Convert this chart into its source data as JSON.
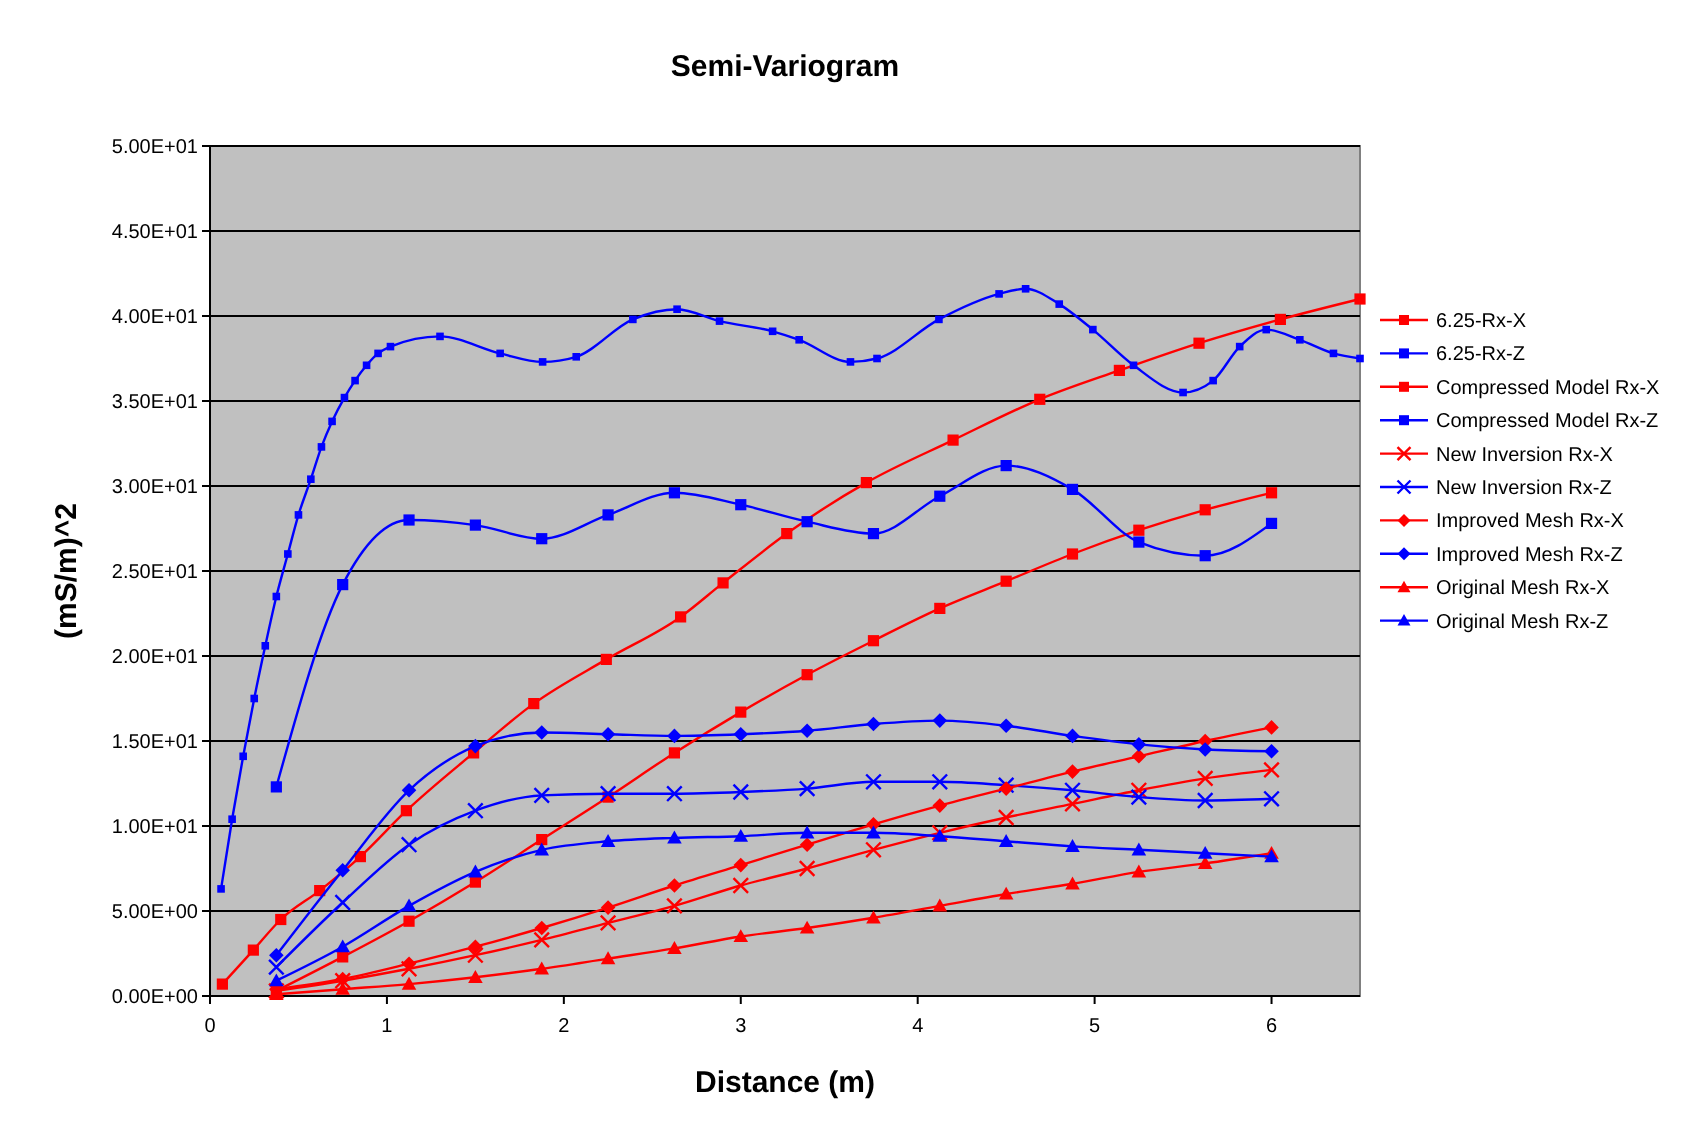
{
  "chart_data": {
    "type": "line",
    "title": "Semi-Variogram",
    "xlabel": "Distance (m)",
    "ylabel": "(mS/m)^2",
    "xlim": [
      0,
      6.5
    ],
    "xticks": [
      0,
      1,
      2,
      3,
      4,
      5,
      6
    ],
    "ylim": [
      0,
      50
    ],
    "yticks": [
      {
        "value": 0,
        "label": "0.00E+00"
      },
      {
        "value": 5,
        "label": "5.00E+00"
      },
      {
        "value": 10,
        "label": "1.00E+01"
      },
      {
        "value": 15,
        "label": "1.50E+01"
      },
      {
        "value": 20,
        "label": "2.00E+01"
      },
      {
        "value": 25,
        "label": "2.50E+01"
      },
      {
        "value": 30,
        "label": "3.00E+01"
      },
      {
        "value": 35,
        "label": "3.50E+01"
      },
      {
        "value": 40,
        "label": "4.00E+01"
      },
      {
        "value": 45,
        "label": "4.50E+01"
      },
      {
        "value": 50,
        "label": "5.00E+01"
      }
    ],
    "grid": "y",
    "legend": "right",
    "line_style": "solid",
    "x": [
      0.375,
      0.75,
      1.125,
      1.5,
      1.875,
      2.25,
      2.625,
      3.0,
      3.375,
      3.75,
      4.125,
      4.5,
      4.875,
      5.25,
      5.625,
      6.0
    ],
    "series": [
      {
        "name": "6.25-Rx-X",
        "color": "#ff0000",
        "marker": "square",
        "x": [
          0.07,
          0.245,
          0.4,
          0.62,
          0.85,
          1.11,
          1.49,
          1.83,
          2.24,
          2.66,
          2.9,
          3.26,
          3.71,
          4.2,
          4.69,
          5.14,
          5.59,
          6.05,
          6.5
        ],
        "values": [
          0.7,
          2.7,
          4.5,
          6.2,
          8.2,
          10.9,
          14.3,
          17.2,
          19.8,
          22.3,
          24.3,
          27.2,
          30.2,
          32.7,
          35.1,
          36.8,
          38.4,
          39.8,
          41.0
        ]
      },
      {
        "name": "6.25-Rx-Z",
        "color": "#0000ff",
        "marker": "square",
        "x": [
          0.0625,
          0.125,
          0.1875,
          0.25,
          0.3125,
          0.375,
          0.44,
          0.5,
          0.57,
          0.63,
          0.69,
          0.76,
          0.82,
          0.885,
          0.95,
          1.02,
          1.3,
          1.64,
          1.88,
          2.07,
          2.39,
          2.64,
          2.88,
          3.18,
          3.33,
          3.62,
          3.77,
          4.12,
          4.46,
          4.61,
          4.8,
          4.99,
          5.22,
          5.5,
          5.67,
          5.82,
          5.97,
          6.16,
          6.35,
          6.5
        ],
        "values": [
          6.3,
          10.4,
          14.1,
          17.5,
          20.6,
          23.5,
          26.0,
          28.3,
          30.4,
          32.3,
          33.8,
          35.2,
          36.2,
          37.1,
          37.8,
          38.2,
          38.8,
          37.8,
          37.3,
          37.6,
          39.8,
          40.4,
          39.7,
          39.1,
          38.6,
          37.3,
          37.5,
          39.8,
          41.3,
          41.6,
          40.7,
          39.2,
          37.1,
          35.5,
          36.2,
          38.2,
          39.2,
          38.6,
          37.8,
          37.5
        ]
      },
      {
        "name": "Compressed Model Rx-X",
        "color": "#ff0000",
        "marker": "square",
        "values": [
          0.3,
          2.3,
          4.4,
          6.7,
          9.2,
          11.7,
          14.3,
          16.7,
          18.9,
          20.9,
          22.8,
          24.4,
          26.0,
          27.4,
          28.6,
          29.6
        ]
      },
      {
        "name": "Compressed Model Rx-Z",
        "color": "#0000ff",
        "marker": "square",
        "values": [
          12.3,
          24.2,
          28.0,
          27.7,
          26.9,
          28.3,
          29.6,
          28.9,
          27.9,
          27.2,
          29.4,
          31.2,
          29.8,
          26.7,
          25.9,
          27.8
        ]
      },
      {
        "name": "New Inversion Rx-X",
        "color": "#ff0000",
        "marker": "cross",
        "values": [
          0.3,
          0.9,
          1.6,
          2.4,
          3.3,
          4.3,
          5.3,
          6.5,
          7.5,
          8.6,
          9.6,
          10.5,
          11.3,
          12.1,
          12.8,
          13.3
        ]
      },
      {
        "name": "New Inversion Rx-Z",
        "color": "#0000ff",
        "marker": "cross",
        "values": [
          1.7,
          5.5,
          8.9,
          10.9,
          11.8,
          11.9,
          11.9,
          12.0,
          12.2,
          12.6,
          12.6,
          12.4,
          12.1,
          11.7,
          11.5,
          11.6
        ]
      },
      {
        "name": "Improved Mesh Rx-X",
        "color": "#ff0000",
        "marker": "diamond",
        "values": [
          0.4,
          1.0,
          1.9,
          2.9,
          4.0,
          5.2,
          6.5,
          7.7,
          8.9,
          10.1,
          11.2,
          12.2,
          13.2,
          14.1,
          15.0,
          15.8
        ]
      },
      {
        "name": "Improved Mesh Rx-Z",
        "color": "#0000ff",
        "marker": "diamond",
        "values": [
          2.4,
          7.4,
          12.1,
          14.7,
          15.5,
          15.4,
          15.3,
          15.4,
          15.6,
          16.0,
          16.2,
          15.9,
          15.3,
          14.8,
          14.5,
          14.4
        ]
      },
      {
        "name": "Original Mesh Rx-X",
        "color": "#ff0000",
        "marker": "triangle",
        "values": [
          0.1,
          0.4,
          0.7,
          1.1,
          1.6,
          2.2,
          2.8,
          3.5,
          4.0,
          4.6,
          5.3,
          6.0,
          6.6,
          7.3,
          7.8,
          8.4
        ]
      },
      {
        "name": "Original Mesh Rx-Z",
        "color": "#0000ff",
        "marker": "triangle",
        "values": [
          0.9,
          2.9,
          5.3,
          7.3,
          8.6,
          9.1,
          9.3,
          9.4,
          9.6,
          9.6,
          9.4,
          9.1,
          8.8,
          8.6,
          8.4,
          8.2
        ]
      }
    ]
  }
}
